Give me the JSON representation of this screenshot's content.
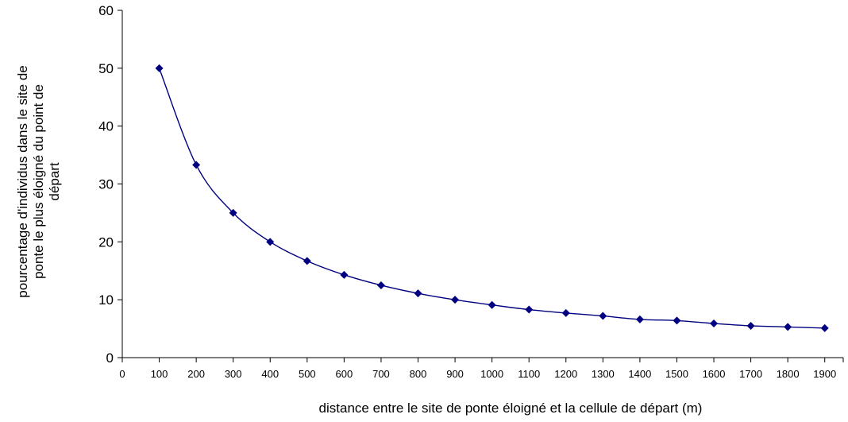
{
  "chart_data": {
    "type": "line",
    "title": "",
    "xlabel": "distance entre le site de ponte éloigné et la cellule de départ (m)",
    "ylabel_lines": [
      "pourcentage d'individus dans le site de",
      "ponte le plus éloigné du point de",
      "départ"
    ],
    "x_ticks": [
      0,
      100,
      200,
      300,
      400,
      500,
      600,
      700,
      800,
      900,
      1000,
      1100,
      1200,
      1300,
      1400,
      1500,
      1600,
      1700,
      1800,
      1900
    ],
    "y_ticks": [
      0,
      10,
      20,
      30,
      40,
      50,
      60
    ],
    "xlim": [
      0,
      1950
    ],
    "ylim": [
      0,
      60
    ],
    "grid": false,
    "legend": "none",
    "colors": {
      "series": "#000080",
      "axis": "#000000"
    },
    "series": [
      {
        "x": [
          100,
          200,
          300,
          400,
          500,
          600,
          700,
          800,
          900,
          1000,
          1100,
          1200,
          1300,
          1400,
          1500,
          1600,
          1700,
          1800,
          1900
        ],
        "values": [
          50,
          33.3,
          25,
          20,
          16.7,
          14.3,
          12.5,
          11.1,
          10,
          9.1,
          8.3,
          7.7,
          7.2,
          6.6,
          6.4,
          5.9,
          5.5,
          5.3,
          5.1
        ]
      }
    ]
  }
}
